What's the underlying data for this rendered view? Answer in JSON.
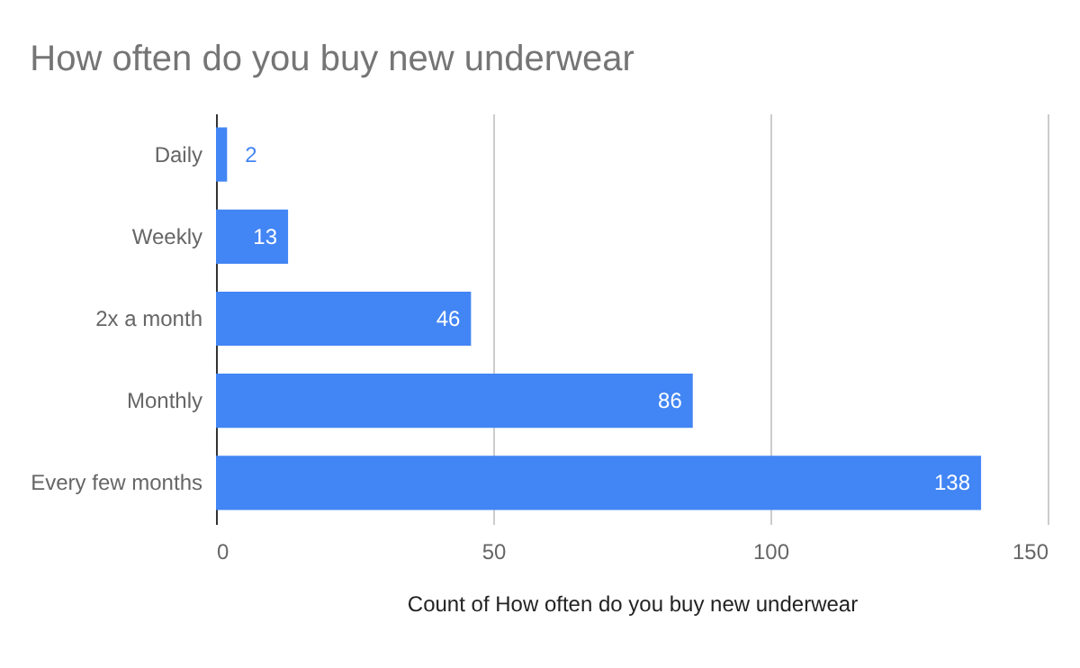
{
  "chart_data": {
    "type": "bar",
    "orientation": "horizontal",
    "title": "How often do you buy new underwear",
    "xlabel": "Count of How often do you buy new underwear",
    "categories": [
      "Daily",
      "Weekly",
      "2x a month",
      "Monthly",
      "Every few months"
    ],
    "values": [
      2,
      13,
      46,
      86,
      138
    ],
    "color": "#4285f4",
    "xlim": [
      0,
      150
    ],
    "xticks": [
      0,
      50,
      100,
      150
    ],
    "grid": "x",
    "data_labels": true
  }
}
